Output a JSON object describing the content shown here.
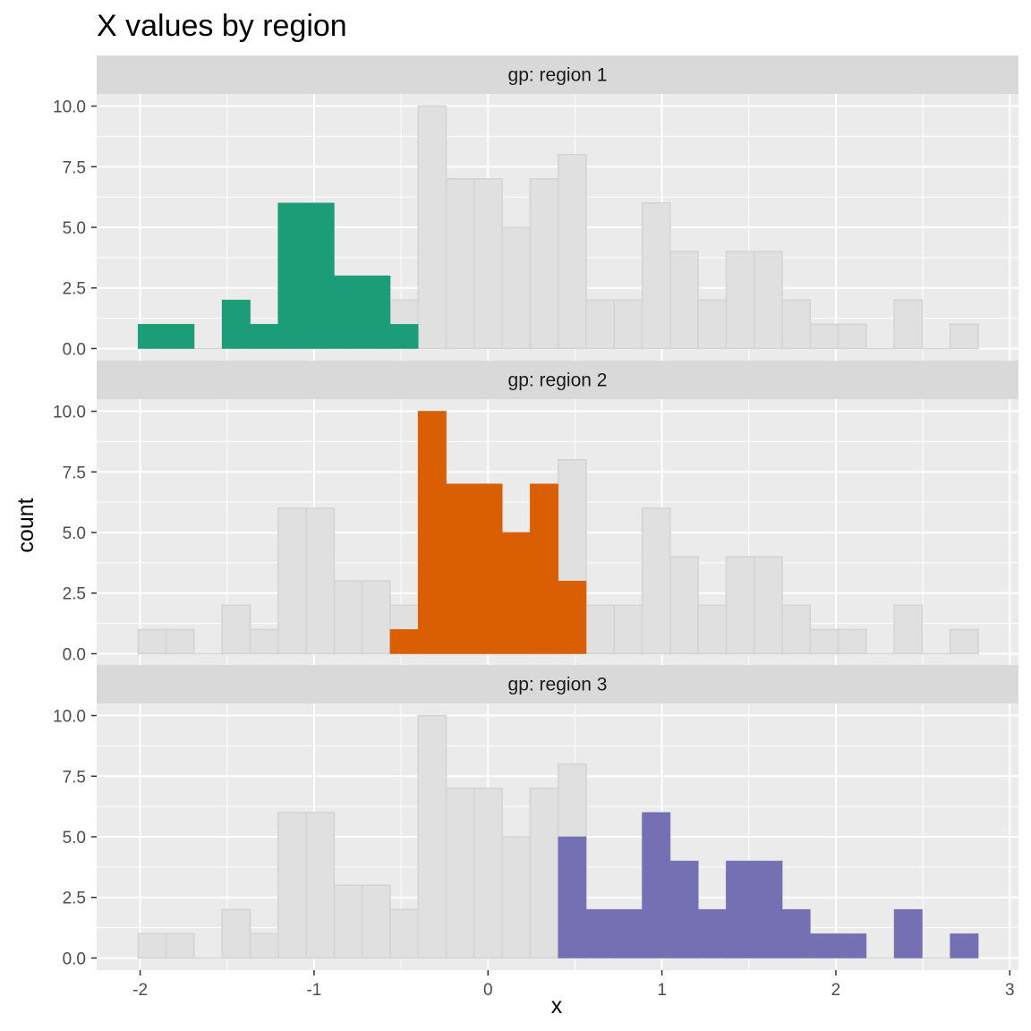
{
  "chart_data": {
    "type": "bar",
    "title": "X values by region",
    "xlabel": "x",
    "ylabel": "count",
    "x_ticks": [
      "-2",
      "-1",
      "0",
      "1",
      "2",
      "3"
    ],
    "x_tick_values": [
      -2,
      -1,
      0,
      1,
      2,
      3
    ],
    "y_ticks": [
      "0.0",
      "2.5",
      "5.0",
      "7.5",
      "10.0"
    ],
    "y_tick_values": [
      0,
      2.5,
      5,
      7.5,
      10
    ],
    "xlim": [
      -2.25,
      3.05
    ],
    "ylim": [
      -0.5,
      10.5
    ],
    "grid": true,
    "bin_width": 0.161,
    "bin_centers": [
      -1.931,
      -1.77,
      -1.609,
      -1.448,
      -1.287,
      -1.126,
      -0.965,
      -0.804,
      -0.643,
      -0.482,
      -0.321,
      -0.16,
      0.001,
      0.162,
      0.323,
      0.484,
      0.645,
      0.806,
      0.967,
      1.128,
      1.289,
      1.45,
      1.611,
      1.772,
      1.933,
      2.094,
      2.255,
      2.416,
      2.577,
      2.738
    ],
    "background_counts": [
      1,
      1,
      0,
      2,
      1,
      6,
      6,
      3,
      3,
      2,
      10,
      7,
      7,
      5,
      7,
      8,
      2,
      2,
      6,
      4,
      2,
      4,
      4,
      2,
      1,
      1,
      0,
      2,
      0,
      1
    ],
    "colors": {
      "background_fill": "#e0e0e0",
      "background_stroke": "#d3d3d3",
      "panel": "#ebebeb",
      "strip": "#d9d9d9",
      "grid": "#ffffff"
    },
    "panels": [
      {
        "strip_label": "gp: region 1",
        "color": "#1b9e77",
        "counts": [
          1,
          1,
          0,
          2,
          1,
          6,
          6,
          3,
          3,
          1,
          0,
          0,
          0,
          0,
          0,
          0,
          0,
          0,
          0,
          0,
          0,
          0,
          0,
          0,
          0,
          0,
          0,
          0,
          0,
          0
        ]
      },
      {
        "strip_label": "gp: region 2",
        "color": "#d95f02",
        "counts": [
          0,
          0,
          0,
          0,
          0,
          0,
          0,
          0,
          0,
          1,
          10,
          7,
          7,
          5,
          7,
          3,
          0,
          0,
          0,
          0,
          0,
          0,
          0,
          0,
          0,
          0,
          0,
          0,
          0,
          0
        ]
      },
      {
        "strip_label": "gp: region 3",
        "color": "#7570b3",
        "counts": [
          0,
          0,
          0,
          0,
          0,
          0,
          0,
          0,
          0,
          0,
          0,
          0,
          0,
          0,
          0,
          5,
          2,
          2,
          6,
          4,
          2,
          4,
          4,
          2,
          1,
          1,
          0,
          2,
          0,
          1
        ]
      }
    ]
  }
}
